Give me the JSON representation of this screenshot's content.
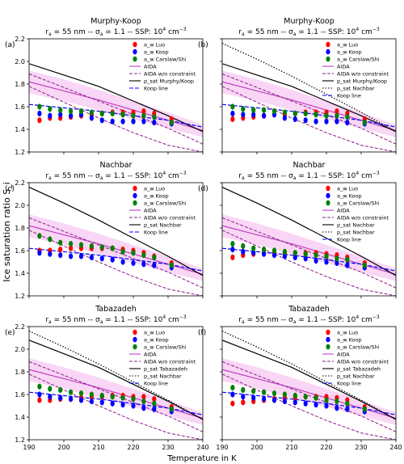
{
  "figure": {
    "ylabel": "Ice saturation ratio S_i",
    "xlabel": "Temperature in K",
    "subtitle": "r_a = 55 nm -- σ_a = 1.1 -- SSP: 10^4 cm^-3",
    "xticks": [
      "190",
      "200",
      "210",
      "220",
      "230",
      "240"
    ],
    "yticks": [
      "1.2",
      "1.4",
      "1.6",
      "1.8",
      "2.0",
      "2.2"
    ]
  },
  "colors": {
    "luo": "#ff0000",
    "koop": "#0000ff",
    "carslaw": "#008000",
    "aida": "#bf3fbf",
    "aida_band": "#f7c8f2",
    "psat": "#000000",
    "koop_line": "#0000ff"
  },
  "chart_data": [
    {
      "type": "scatter",
      "panel": "(a)",
      "title": "Murphy-Koop",
      "xlim": [
        190,
        240
      ],
      "ylim": [
        1.2,
        2.2
      ],
      "legend": [
        "a_w Luo",
        "a_w Koop",
        "a_w Carslaw/Shi",
        "AIDA",
        "AIDA w/o constraint",
        "p_sat Murphy/Koop",
        "Koop line"
      ],
      "series": [
        {
          "name": "a_w Luo",
          "x": [
            193,
            196,
            199,
            202,
            205,
            208,
            211,
            214,
            217,
            220,
            223,
            226,
            231
          ],
          "y": [
            1.48,
            1.5,
            1.5,
            1.51,
            1.52,
            1.53,
            1.54,
            1.55,
            1.55,
            1.55,
            1.56,
            1.54,
            1.49
          ]
        },
        {
          "name": "a_w Koop",
          "x": [
            193,
            196,
            199,
            202,
            205,
            208,
            211,
            214,
            217,
            220,
            223,
            226,
            231
          ],
          "y": [
            1.54,
            1.52,
            1.53,
            1.52,
            1.53,
            1.5,
            1.48,
            1.47,
            1.47,
            1.47,
            1.47,
            1.46,
            1.45
          ]
        },
        {
          "name": "a_w Carslaw/Shi",
          "x": [
            193,
            196,
            199,
            202,
            205,
            208,
            211,
            214,
            217,
            220,
            223,
            226,
            231
          ],
          "y": [
            1.6,
            1.58,
            1.57,
            1.56,
            1.56,
            1.55,
            1.54,
            1.54,
            1.53,
            1.52,
            1.52,
            1.51,
            1.46
          ]
        }
      ],
      "psat_dotted": false
    },
    {
      "type": "scatter",
      "panel": "(b)",
      "title": "Murphy-Koop",
      "xlim": [
        190,
        240
      ],
      "ylim": [
        1.2,
        2.2
      ],
      "legend": [
        "a_w Luo",
        "a_w Koop",
        "a_w Carslaw/Shi",
        "AIDA",
        "AIDA w/o constraint",
        "p_sat Murphy/Koop",
        "p_sat Nachbar",
        "Koop line"
      ],
      "series": [
        {
          "name": "a_w Luo",
          "x": [
            193,
            196,
            199,
            202,
            205,
            208,
            211,
            214,
            217,
            220,
            223,
            226,
            231
          ],
          "y": [
            1.49,
            1.5,
            1.51,
            1.52,
            1.53,
            1.53,
            1.54,
            1.55,
            1.55,
            1.55,
            1.56,
            1.54,
            1.49
          ]
        },
        {
          "name": "a_w Koop",
          "x": [
            193,
            196,
            199,
            202,
            205,
            208,
            211,
            214,
            217,
            220,
            223,
            226,
            231
          ],
          "y": [
            1.54,
            1.53,
            1.53,
            1.52,
            1.53,
            1.5,
            1.49,
            1.48,
            1.47,
            1.47,
            1.47,
            1.46,
            1.45
          ]
        },
        {
          "name": "a_w Carslaw/Shi",
          "x": [
            193,
            196,
            199,
            202,
            205,
            208,
            211,
            214,
            217,
            220,
            223,
            226,
            231
          ],
          "y": [
            1.6,
            1.58,
            1.57,
            1.57,
            1.56,
            1.55,
            1.54,
            1.54,
            1.53,
            1.52,
            1.52,
            1.51,
            1.46
          ]
        }
      ],
      "psat_dotted": true
    },
    {
      "type": "scatter",
      "panel": "(c)",
      "title": "Nachbar",
      "xlim": [
        190,
        240
      ],
      "ylim": [
        1.2,
        2.2
      ],
      "legend": [
        "a_w Luo",
        "a_w Koop",
        "a_w Carslaw/Shi",
        "AIDA",
        "AIDA w/o constraint",
        "p_sat Nachbar",
        "Koop line"
      ],
      "series": [
        {
          "name": "a_w Luo",
          "x": [
            193,
            196,
            199,
            202,
            205,
            208,
            211,
            214,
            217,
            220,
            223,
            226,
            231
          ],
          "y": [
            1.6,
            1.6,
            1.61,
            1.62,
            1.62,
            1.62,
            1.62,
            1.62,
            1.61,
            1.6,
            1.58,
            1.55,
            1.49
          ]
        },
        {
          "name": "a_w Koop",
          "x": [
            193,
            196,
            199,
            202,
            205,
            208,
            211,
            214,
            217,
            220,
            223,
            226,
            231
          ],
          "y": [
            1.58,
            1.57,
            1.56,
            1.55,
            1.55,
            1.54,
            1.53,
            1.52,
            1.5,
            1.49,
            1.48,
            1.47,
            1.45
          ]
        },
        {
          "name": "a_w Carslaw/Shi",
          "x": [
            193,
            196,
            199,
            202,
            205,
            208,
            211,
            214,
            217,
            220,
            223,
            226,
            231
          ],
          "y": [
            1.73,
            1.7,
            1.67,
            1.66,
            1.65,
            1.64,
            1.63,
            1.62,
            1.59,
            1.58,
            1.56,
            1.54,
            1.47
          ]
        }
      ],
      "psat_dotted": false
    },
    {
      "type": "scatter",
      "panel": "(d)",
      "title": "Nachbar",
      "xlim": [
        190,
        240
      ],
      "ylim": [
        1.2,
        2.2
      ],
      "legend": [
        "a_w Luo",
        "a_w Koop",
        "a_w Carslaw/Shi",
        "AIDA",
        "AIDA w/o constraint",
        "p_sat Nachbar",
        "p_sat Nachbar",
        "Koop line"
      ],
      "series": [
        {
          "name": "a_w Luo",
          "x": [
            193,
            196,
            199,
            202,
            205,
            208,
            211,
            214,
            217,
            220,
            223,
            226,
            231
          ],
          "y": [
            1.54,
            1.56,
            1.57,
            1.58,
            1.58,
            1.58,
            1.58,
            1.58,
            1.58,
            1.57,
            1.56,
            1.54,
            1.49
          ]
        },
        {
          "name": "a_w Koop",
          "x": [
            193,
            196,
            199,
            202,
            205,
            208,
            211,
            214,
            217,
            220,
            223,
            226,
            231
          ],
          "y": [
            1.61,
            1.59,
            1.58,
            1.57,
            1.56,
            1.55,
            1.54,
            1.53,
            1.51,
            1.5,
            1.49,
            1.47,
            1.45
          ]
        },
        {
          "name": "a_w Carslaw/Shi",
          "x": [
            193,
            196,
            199,
            202,
            205,
            208,
            211,
            214,
            217,
            220,
            223,
            226,
            231
          ],
          "y": [
            1.66,
            1.64,
            1.62,
            1.61,
            1.6,
            1.59,
            1.58,
            1.57,
            1.56,
            1.55,
            1.53,
            1.52,
            1.47
          ]
        }
      ],
      "psat_dotted": false
    },
    {
      "type": "scatter",
      "panel": "(e)",
      "title": "Tabazadeh",
      "xlim": [
        190,
        240
      ],
      "ylim": [
        1.2,
        2.2
      ],
      "legend": [
        "a_w Luo",
        "a_w Koop",
        "a_w Carslaw/Shi",
        "AIDA",
        "AIDA w/o constraint",
        "p_sat Tabazadeh",
        "p_sat Nachbar",
        "Koop line"
      ],
      "series": [
        {
          "name": "a_w Luo",
          "x": [
            193,
            196,
            199,
            202,
            205,
            208,
            211,
            214,
            217,
            220,
            223,
            226,
            231
          ],
          "y": [
            1.55,
            1.55,
            1.56,
            1.56,
            1.57,
            1.58,
            1.58,
            1.59,
            1.59,
            1.58,
            1.58,
            1.56,
            1.49
          ]
        },
        {
          "name": "a_w Koop",
          "x": [
            193,
            196,
            199,
            202,
            205,
            208,
            211,
            214,
            217,
            220,
            223,
            226,
            231
          ],
          "y": [
            1.6,
            1.58,
            1.57,
            1.56,
            1.55,
            1.54,
            1.53,
            1.52,
            1.51,
            1.5,
            1.48,
            1.47,
            1.45
          ]
        },
        {
          "name": "a_w Carslaw/Shi",
          "x": [
            193,
            196,
            199,
            202,
            205,
            208,
            211,
            214,
            217,
            220,
            223,
            226,
            231
          ],
          "y": [
            1.67,
            1.65,
            1.64,
            1.62,
            1.61,
            1.6,
            1.59,
            1.58,
            1.57,
            1.56,
            1.54,
            1.52,
            1.47
          ]
        }
      ],
      "psat_dotted": true
    },
    {
      "type": "scatter",
      "panel": "(f)",
      "title": "Tabazadeh",
      "xlim": [
        190,
        240
      ],
      "ylim": [
        1.2,
        2.2
      ],
      "legend": [
        "a_w Luo",
        "a_w Koop",
        "a_w Carslaw/Shi",
        "AIDA",
        "AIDA w/o constraint",
        "p_sat Tabazadeh",
        "p_sat Nachbar",
        "Koop line"
      ],
      "series": [
        {
          "name": "a_w Luo",
          "x": [
            193,
            196,
            199,
            202,
            205,
            208,
            211,
            214,
            217,
            220,
            223,
            226,
            231
          ],
          "y": [
            1.52,
            1.53,
            1.54,
            1.55,
            1.56,
            1.57,
            1.57,
            1.58,
            1.58,
            1.58,
            1.57,
            1.55,
            1.49
          ]
        },
        {
          "name": "a_w Koop",
          "x": [
            193,
            196,
            199,
            202,
            205,
            208,
            211,
            214,
            217,
            220,
            223,
            226,
            231
          ],
          "y": [
            1.6,
            1.58,
            1.57,
            1.56,
            1.55,
            1.54,
            1.53,
            1.52,
            1.51,
            1.5,
            1.48,
            1.47,
            1.45
          ]
        },
        {
          "name": "a_w Carslaw/Shi",
          "x": [
            193,
            196,
            199,
            202,
            205,
            208,
            211,
            214,
            217,
            220,
            223,
            226,
            231
          ],
          "y": [
            1.66,
            1.64,
            1.63,
            1.62,
            1.61,
            1.6,
            1.59,
            1.58,
            1.57,
            1.55,
            1.54,
            1.52,
            1.47
          ]
        }
      ],
      "psat_dotted": true
    }
  ],
  "curves": {
    "aida": {
      "x": [
        190,
        200,
        210,
        220,
        230,
        240
      ],
      "y": [
        1.82,
        1.74,
        1.66,
        1.57,
        1.48,
        1.39
      ]
    },
    "aida_upper": {
      "x": [
        190,
        200,
        210,
        220,
        230,
        240
      ],
      "y": [
        1.92,
        1.84,
        1.75,
        1.65,
        1.55,
        1.44
      ]
    },
    "aida_lower": {
      "x": [
        190,
        200,
        210,
        220,
        230,
        240
      ],
      "y": [
        1.72,
        1.65,
        1.57,
        1.49,
        1.41,
        1.33
      ]
    },
    "aida_wo": {
      "x": [
        190,
        200,
        210,
        220,
        230,
        240
      ],
      "y": [
        1.89,
        1.77,
        1.65,
        1.53,
        1.41,
        1.27
      ]
    },
    "aida_wo_lower": {
      "x": [
        190,
        200,
        210,
        220,
        230,
        240
      ],
      "y": [
        1.78,
        1.64,
        1.5,
        1.37,
        1.26,
        1.2
      ]
    },
    "psat_solid": {
      "x": [
        190,
        200,
        210,
        220,
        230,
        240
      ],
      "y": [
        1.98,
        1.88,
        1.78,
        1.65,
        1.52,
        1.38
      ]
    },
    "psat_dotted_line": {
      "x": [
        190,
        200,
        210,
        220,
        230,
        240
      ],
      "y": [
        2.16,
        2.02,
        1.87,
        1.71,
        1.55,
        1.38
      ]
    },
    "psat_nachbar_solid": {
      "x": [
        190,
        200,
        210,
        220,
        230,
        240
      ],
      "y": [
        2.16,
        2.02,
        1.87,
        1.71,
        1.55,
        1.38
      ]
    },
    "psat_taba_solid": {
      "x": [
        190,
        200,
        210,
        220,
        230,
        240
      ],
      "y": [
        2.08,
        1.96,
        1.84,
        1.69,
        1.54,
        1.38
      ]
    },
    "koop_line": {
      "x": [
        190,
        200,
        210,
        220,
        230,
        240
      ],
      "y": [
        1.62,
        1.59,
        1.56,
        1.52,
        1.48,
        1.42
      ]
    }
  }
}
